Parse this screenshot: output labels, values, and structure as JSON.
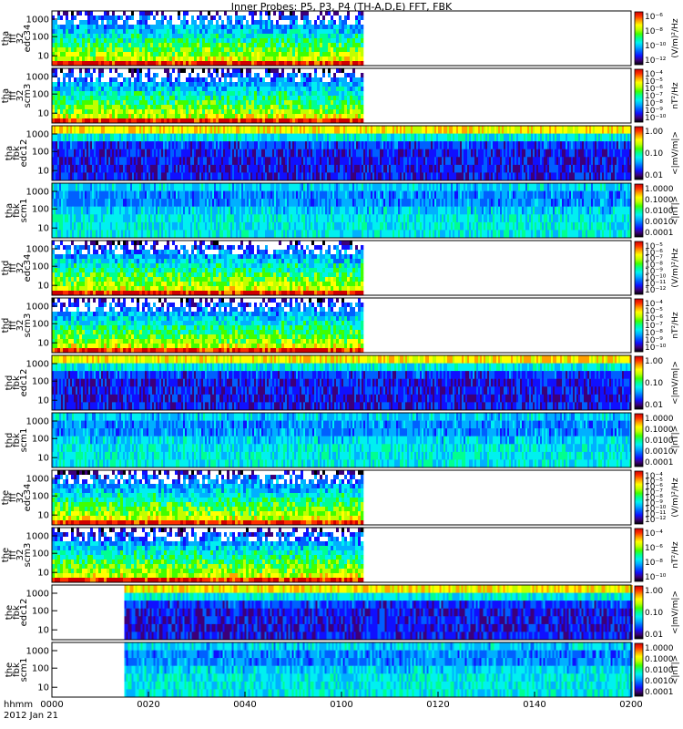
{
  "title": "Inner Probes: P5, P3, P4 (TH-A,D,E) FFT, FBK",
  "footer": {
    "line1": "hhmm",
    "line2": "2012 Jan 21"
  },
  "colors": {
    "scale": [
      "#000000",
      "#3c007a",
      "#1010ff",
      "#0060ff",
      "#00b0ff",
      "#00f0f0",
      "#00ff90",
      "#40ff00",
      "#c0ff00",
      "#ffff00",
      "#ffa000",
      "#ff3000",
      "#d00000"
    ],
    "frame": "#000000"
  },
  "chart_data": {
    "type": "heatmap",
    "x": {
      "ticks": [
        "0000",
        "0020",
        "0040",
        "0100",
        "0120",
        "0140",
        "0200"
      ],
      "range_minutes": [
        0,
        120
      ]
    },
    "panels": [
      {
        "probe": "tha",
        "label": [
          "tha",
          "fff",
          "32",
          "edc34"
        ],
        "yticks": [
          "1000",
          "100",
          "10"
        ],
        "ylog": true,
        "unit": "(V/m)²/Hz",
        "cb_ticks": [
          "10⁻⁶",
          "10⁻⁸",
          "10⁻¹⁰",
          "10⁻¹²"
        ],
        "data_span_minutes": [
          0,
          64
        ],
        "kind": "fft"
      },
      {
        "probe": "tha",
        "label": [
          "tha",
          "fff",
          "32",
          "scm3"
        ],
        "yticks": [
          "1000",
          "100",
          "10"
        ],
        "ylog": true,
        "unit": "nT²/Hz",
        "cb_ticks": [
          "10⁻⁴",
          "10⁻⁵",
          "10⁻⁶",
          "10⁻⁷",
          "10⁻⁸",
          "10⁻⁹",
          "10⁻¹⁰"
        ],
        "data_span_minutes": [
          0,
          64
        ],
        "kind": "fft"
      },
      {
        "probe": "tha",
        "label": [
          "tha",
          "fbk",
          "edc12"
        ],
        "yticks": [
          "1000",
          "100",
          "10"
        ],
        "ylog": true,
        "unit": "<|mV/m|>",
        "cb_ticks": [
          "1.00",
          "0.10",
          "0.01"
        ],
        "data_span_minutes": [
          0,
          120
        ],
        "kind": "fbk"
      },
      {
        "probe": "tha",
        "label": [
          "tha",
          "fbk",
          "scm1"
        ],
        "yticks": [
          "1000",
          "100",
          "10"
        ],
        "ylog": true,
        "unit": "<|nT|>",
        "cb_ticks": [
          "1.0000",
          "0.1000",
          "0.0100",
          "0.0010",
          "0.0001"
        ],
        "data_span_minutes": [
          0,
          120
        ],
        "kind": "fbk"
      },
      {
        "probe": "thd",
        "label": [
          "thd",
          "fff",
          "32",
          "edc34"
        ],
        "yticks": [
          "1000",
          "100",
          "10"
        ],
        "ylog": true,
        "unit": "(V/m)²/Hz",
        "cb_ticks": [
          "10⁻⁵",
          "10⁻⁶",
          "10⁻⁷",
          "10⁻⁸",
          "10⁻⁹",
          "10⁻¹⁰",
          "10⁻¹¹",
          "10⁻¹²"
        ],
        "data_span_minutes": [
          0,
          64
        ],
        "kind": "fft"
      },
      {
        "probe": "thd",
        "label": [
          "thd",
          "fff",
          "32",
          "scm3"
        ],
        "yticks": [
          "1000",
          "100",
          "10"
        ],
        "ylog": true,
        "unit": "nT²/Hz",
        "cb_ticks": [
          "10⁻⁴",
          "10⁻⁵",
          "10⁻⁶",
          "10⁻⁷",
          "10⁻⁸",
          "10⁻⁹",
          "10⁻¹⁰"
        ],
        "data_span_minutes": [
          0,
          64
        ],
        "kind": "fft"
      },
      {
        "probe": "thd",
        "label": [
          "thd",
          "fbk",
          "edc12"
        ],
        "yticks": [
          "1000",
          "100",
          "10"
        ],
        "ylog": true,
        "unit": "<|mV/m|>",
        "cb_ticks": [
          "1.00",
          "0.10",
          "0.01"
        ],
        "data_span_minutes": [
          0,
          120
        ],
        "kind": "fbk"
      },
      {
        "probe": "thd",
        "label": [
          "thd",
          "fbk",
          "scm1"
        ],
        "yticks": [
          "1000",
          "100",
          "10"
        ],
        "ylog": true,
        "unit": "<|nT|>",
        "cb_ticks": [
          "1.0000",
          "0.1000",
          "0.0100",
          "0.0010",
          "0.0001"
        ],
        "data_span_minutes": [
          0,
          120
        ],
        "kind": "fbk"
      },
      {
        "probe": "the",
        "label": [
          "the",
          "fff",
          "32",
          "edc34"
        ],
        "yticks": [
          "1000",
          "100",
          "10"
        ],
        "ylog": true,
        "unit": "(V/m)²/Hz",
        "cb_ticks": [
          "10⁻⁴",
          "10⁻⁵",
          "10⁻⁶",
          "10⁻⁷",
          "10⁻⁸",
          "10⁻⁹",
          "10⁻¹⁰",
          "10⁻¹¹",
          "10⁻¹²"
        ],
        "data_span_minutes": [
          0,
          64
        ],
        "kind": "fft"
      },
      {
        "probe": "the",
        "label": [
          "the",
          "fff",
          "32",
          "scm3"
        ],
        "yticks": [
          "1000",
          "100",
          "10"
        ],
        "ylog": true,
        "unit": "nT²/Hz",
        "cb_ticks": [
          "10⁻⁴",
          "10⁻⁶",
          "10⁻⁸",
          "10⁻¹⁰"
        ],
        "data_span_minutes": [
          0,
          64
        ],
        "kind": "fft"
      },
      {
        "probe": "the",
        "label": [
          "the",
          "fbk",
          "edc12"
        ],
        "yticks": [
          "1000",
          "100",
          "10"
        ],
        "ylog": true,
        "unit": "<|mV/m|>",
        "cb_ticks": [
          "1.00",
          "0.10",
          "0.01"
        ],
        "data_span_minutes": [
          15,
          120
        ],
        "kind": "fbk"
      },
      {
        "probe": "the",
        "label": [
          "the",
          "fbk",
          "scm1"
        ],
        "yticks": [
          "1000",
          "100",
          "10"
        ],
        "ylog": true,
        "unit": "<|nT|>",
        "cb_ticks": [
          "1.0000",
          "0.1000",
          "0.0100",
          "0.0010",
          "0.0001"
        ],
        "data_span_minutes": [
          15,
          120
        ],
        "kind": "fbk"
      }
    ]
  }
}
